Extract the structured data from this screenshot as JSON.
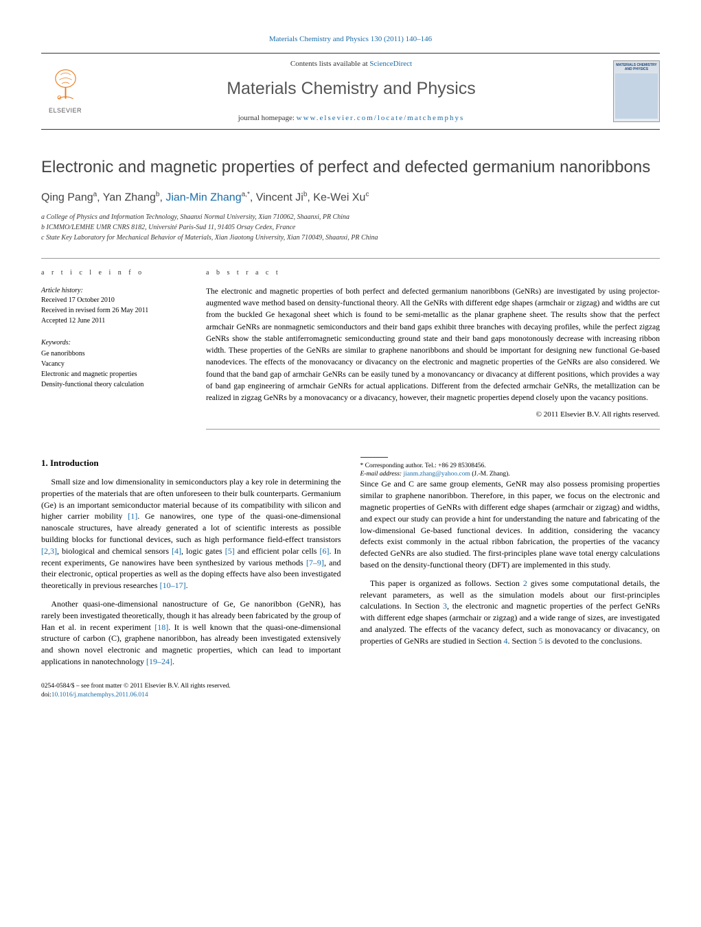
{
  "header": {
    "citation_prefix": "Materials Chemistry and Physics",
    "citation_vol": "130 (2011) 140–146",
    "contents_prefix": "Contents lists available at ",
    "contents_link": "ScienceDirect",
    "journal_name": "Materials Chemistry and Physics",
    "homepage_prefix": "journal homepage: ",
    "homepage_url": "www.elsevier.com/locate/matchemphys",
    "elsevier": "ELSEVIER",
    "cover_title": "MATERIALS CHEMISTRY AND PHYSICS"
  },
  "article": {
    "title": "Electronic and magnetic properties of perfect and defected germanium nanoribbons",
    "authors_html": "Qing Pang<sup>a</sup>, Yan Zhang<sup>b</sup>, <a class='author-link' href='#'>Jian-Min Zhang</a><sup>a,*</sup>, Vincent Ji<sup>b</sup>, Ke-Wei Xu<sup>c</sup>",
    "affiliations": {
      "a": "a College of Physics and Information Technology, Shaanxi Normal University, Xian 710062, Shaanxi, PR China",
      "b": "b ICMMO/LEMHE UMR CNRS 8182, Université Paris-Sud 11, 91405 Orsay Cedex, France",
      "c": "c State Key Laboratory for Mechanical Behavior of Materials, Xian Jiaotong University, Xian 710049, Shaanxi, PR China"
    }
  },
  "article_info": {
    "label": "a r t i c l e   i n f o",
    "history_label": "Article history:",
    "received": "Received 17 October 2010",
    "revised": "Received in revised form 26 May 2011",
    "accepted": "Accepted 12 June 2011",
    "keywords_label": "Keywords:",
    "keywords": [
      "Ge nanoribbons",
      "Vacancy",
      "Electronic and magnetic properties",
      "Density-functional theory calculation"
    ]
  },
  "abstract": {
    "label": "a b s t r a c t",
    "text": "The electronic and magnetic properties of both perfect and defected germanium nanoribbons (GeNRs) are investigated by using projector-augmented wave method based on density-functional theory. All the GeNRs with different edge shapes (armchair or zigzag) and widths are cut from the buckled Ge hexagonal sheet which is found to be semi-metallic as the planar graphene sheet. The results show that the perfect armchair GeNRs are nonmagnetic semiconductors and their band gaps exhibit three branches with decaying profiles, while the perfect zigzag GeNRs show the stable antiferromagnetic semiconducting ground state and their band gaps monotonously decrease with increasing ribbon width. These properties of the GeNRs are similar to graphene nanoribbons and should be important for designing new functional Ge-based nanodevices. The effects of the monovacancy or divacancy on the electronic and magnetic properties of the GeNRs are also considered. We found that the band gap of armchair GeNRs can be easily tuned by a monovancancy or divacancy at different positions, which provides a way of band gap engineering of armchair GeNRs for actual applications. Different from the defected armchair GeNRs, the metallization can be realized in zigzag GeNRs by a monovacancy or a divacancy, however, their magnetic properties depend closely upon the vacancy positions.",
    "copyright": "© 2011 Elsevier B.V. All rights reserved."
  },
  "body": {
    "section_heading": "1. Introduction",
    "p1_html": "Small size and low dimensionality in semiconductors play a key role in determining the properties of the materials that are often unforeseen to their bulk counterparts. Germanium (Ge) is an important semiconductor material because of its compatibility with silicon and higher carrier mobility <a href='#'>[1]</a>. Ge nanowires, one type of the quasi-one-dimensional nanoscale structures, have already generated a lot of scientific interests as possible building blocks for functional devices, such as high performance field-effect transistors <a href='#'>[2,3]</a>, biological and chemical sensors <a href='#'>[4]</a>, logic gates <a href='#'>[5]</a> and efficient polar cells <a href='#'>[6]</a>. In recent experiments, Ge nanowires have been synthesized by various methods <a href='#'>[7–9]</a>, and their electronic, optical properties as well as the doping effects have also been investigated theoretically in previous researches <a href='#'>[10–17]</a>.",
    "p2_html": "Another quasi-one-dimensional nanostructure of Ge, Ge nanoribbon (GeNR), has rarely been investigated theoretically, though it has already been fabricated by the group of Han et al. in recent experiment <a href='#'>[18]</a>. It is well known that the quasi-one-dimensional structure of carbon (C), graphene nanoribbon, has already been investigated extensively and shown novel electronic and magnetic properties, which can lead to important applications in nanotechnology <a href='#'>[19–24]</a>.",
    "p3_html": "Since Ge and C are same group elements, GeNR may also possess promising properties similar to graphene nanoribbon. Therefore, in this paper, we focus on the electronic and magnetic properties of GeNRs with different edge shapes (armchair or zigzag) and widths, and expect our study can provide a hint for understanding the nature and fabricating of the low-dimensional Ge-based functional devices. In addition, considering the vacancy defects exist commonly in the actual ribbon fabrication, the properties of the vacancy defected GeNRs are also studied. The first-principles plane wave total energy calculations based on the density-functional theory (DFT) are implemented in this study.",
    "p4_html": "This paper is organized as follows. Section <a href='#'>2</a> gives some computational details, the relevant parameters, as well as the simulation models about our first-principles calculations. In Section <a href='#'>3</a>, the electronic and magnetic properties of the perfect GeNRs with different edge shapes (armchair or zigzag) and a wide range of sizes, are investigated and analyzed. The effects of the vacancy defect, such as monovacancy or divacancy, on properties of GeNRs are studied in Section <a href='#'>4</a>. Section <a href='#'>5</a> is devoted to the conclusions."
  },
  "footnotes": {
    "corresponding": "* Corresponding author. Tel.: +86 29 85308456.",
    "email_label": "E-mail address:",
    "email": "jianm.zhang@yahoo.com",
    "email_name": "(J.-M. Zhang)."
  },
  "bottom": {
    "line1": "0254-0584/$ – see front matter © 2011 Elsevier B.V. All rights reserved.",
    "doi_label": "doi:",
    "doi": "10.1016/j.matchemphys.2011.06.014"
  },
  "colors": {
    "link": "#1a6ca8",
    "text": "#000000",
    "heading": "#444444",
    "rule": "#999999",
    "elsevier_orange": "#e77817"
  }
}
